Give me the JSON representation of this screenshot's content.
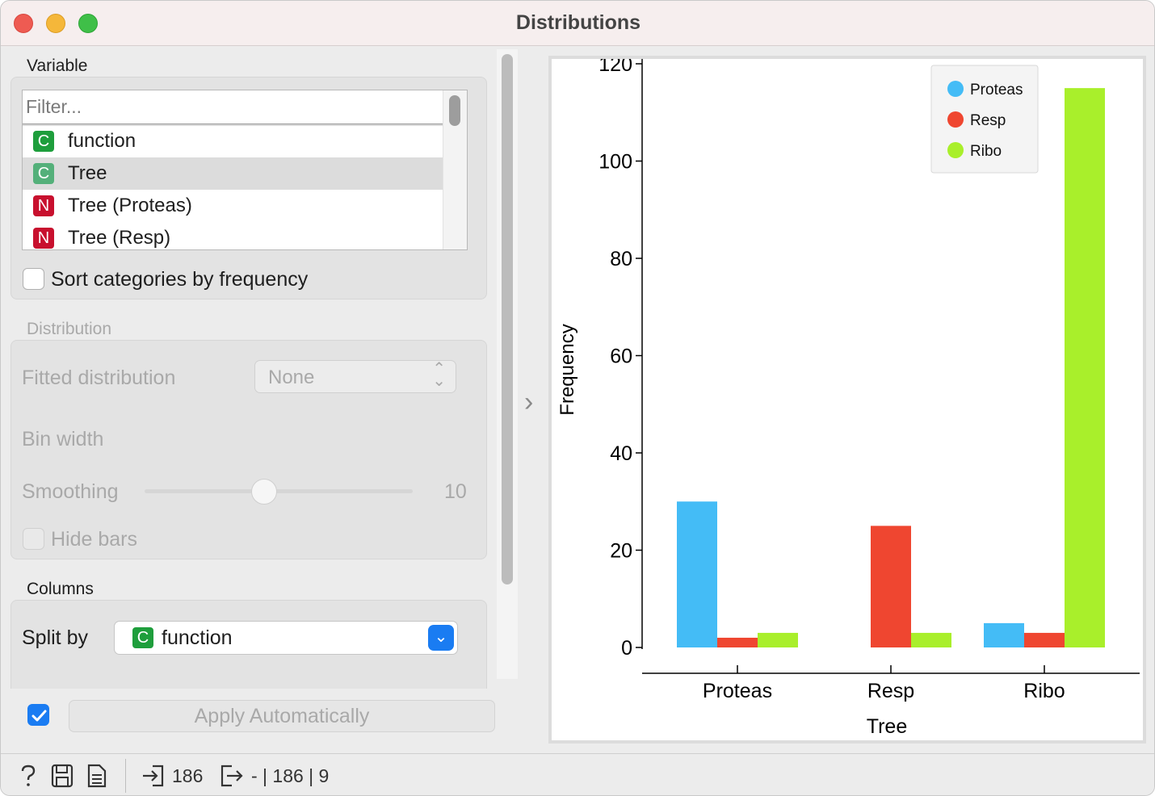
{
  "window": {
    "title": "Distributions"
  },
  "variable": {
    "label": "Variable",
    "filter_placeholder": "Filter...",
    "items": [
      {
        "type": "C",
        "label": "function",
        "selected": false
      },
      {
        "type": "C",
        "label": "Tree",
        "selected": true
      },
      {
        "type": "N",
        "label": "Tree (Proteas)",
        "selected": false
      },
      {
        "type": "N",
        "label": "Tree (Resp)",
        "selected": false
      }
    ],
    "sort_label": "Sort categories by frequency"
  },
  "distribution": {
    "label": "Distribution",
    "fitted_label": "Fitted distribution",
    "fitted_value": "None",
    "bin_width_label": "Bin width",
    "smoothing_label": "Smoothing",
    "smoothing_value": "10",
    "hide_bars_label": "Hide bars"
  },
  "columns": {
    "label": "Columns",
    "split_label": "Split by",
    "split_badge": "C",
    "split_value": "function"
  },
  "apply": {
    "label": "Apply Automatically",
    "checked": true
  },
  "status": {
    "input_count": "186",
    "output_text": "- | 186 | 9"
  },
  "colors": {
    "proteas": "#44bcf6",
    "resp": "#ef4630",
    "ribo": "#a9ef2b",
    "accent": "#1a7cf2"
  },
  "chart_data": {
    "type": "bar",
    "categories": [
      "Proteas",
      "Resp",
      "Ribo"
    ],
    "series": [
      {
        "name": "Proteas",
        "color": "#44bcf6",
        "values": [
          30,
          0,
          5
        ]
      },
      {
        "name": "Resp",
        "color": "#ef4630",
        "values": [
          2,
          25,
          3
        ]
      },
      {
        "name": "Ribo",
        "color": "#a9ef2b",
        "values": [
          3,
          3,
          115
        ]
      }
    ],
    "xlabel": "Tree",
    "ylabel": "Frequency",
    "ylim": [
      0,
      120
    ],
    "yticks": [
      0,
      20,
      40,
      60,
      80,
      100,
      120
    ],
    "grid": false,
    "legend": "top-right"
  }
}
